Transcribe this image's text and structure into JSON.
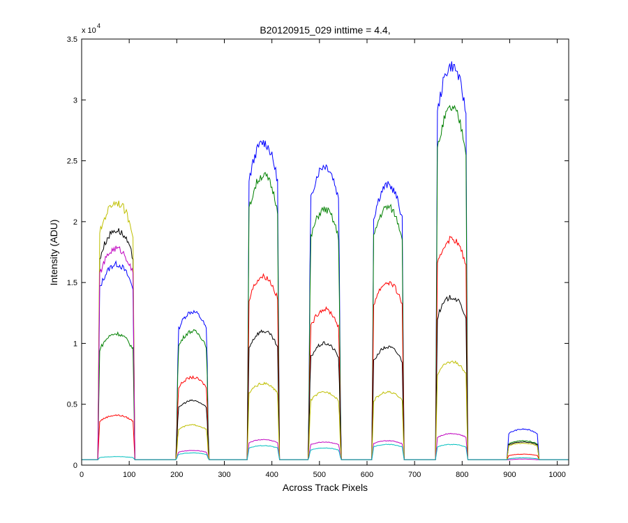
{
  "chart_data": {
    "type": "line",
    "title": "B20120915_029 inttime = 4.4,",
    "xlabel": "Across Track Pixels",
    "ylabel": "Intensity (ADU)",
    "xlim": [
      0,
      1024
    ],
    "ylim": [
      0,
      35000
    ],
    "x_ticks": [
      0,
      100,
      200,
      300,
      400,
      500,
      600,
      700,
      800,
      900,
      1000
    ],
    "y_ticks": [
      0,
      5000,
      10000,
      15000,
      20000,
      25000,
      30000,
      35000
    ],
    "y_tick_labels": [
      "0",
      "0.5",
      "1",
      "1.5",
      "2",
      "2.5",
      "3",
      "3.5"
    ],
    "y_exponent_base": "x 10",
    "y_exponent_power": "4",
    "grid": false,
    "legend": "none",
    "baseline": 450,
    "blocks": [
      {
        "start": 38,
        "end": 108
      },
      {
        "start": 203,
        "end": 263
      },
      {
        "start": 352,
        "end": 412
      },
      {
        "start": 481,
        "end": 541
      },
      {
        "start": 614,
        "end": 674
      },
      {
        "start": 748,
        "end": 808
      },
      {
        "start": 898,
        "end": 958
      }
    ],
    "series": [
      {
        "color": "#0000ff",
        "plateaus": [
          16500,
          12600,
          26500,
          24600,
          23000,
          32800,
          2950
        ]
      },
      {
        "color": "#008000",
        "plateaus": [
          10800,
          11000,
          23800,
          21000,
          21200,
          29300,
          2000
        ]
      },
      {
        "color": "#ff0000",
        "plateaus": [
          4100,
          7200,
          15500,
          12800,
          15000,
          18600,
          900
        ]
      },
      {
        "color": "#000000",
        "plateaus": [
          19300,
          5300,
          11000,
          10000,
          9700,
          13800,
          1900
        ]
      },
      {
        "color": "#bfbf00",
        "plateaus": [
          21600,
          3300,
          6700,
          6000,
          6000,
          8500,
          1800
        ]
      },
      {
        "color": "#bf00bf",
        "plateaus": [
          17800,
          1200,
          2100,
          1900,
          2000,
          2600,
          500
        ]
      },
      {
        "color": "#00bfbf",
        "plateaus": [
          700,
          1000,
          1600,
          1400,
          1700,
          1700,
          600
        ]
      }
    ]
  }
}
